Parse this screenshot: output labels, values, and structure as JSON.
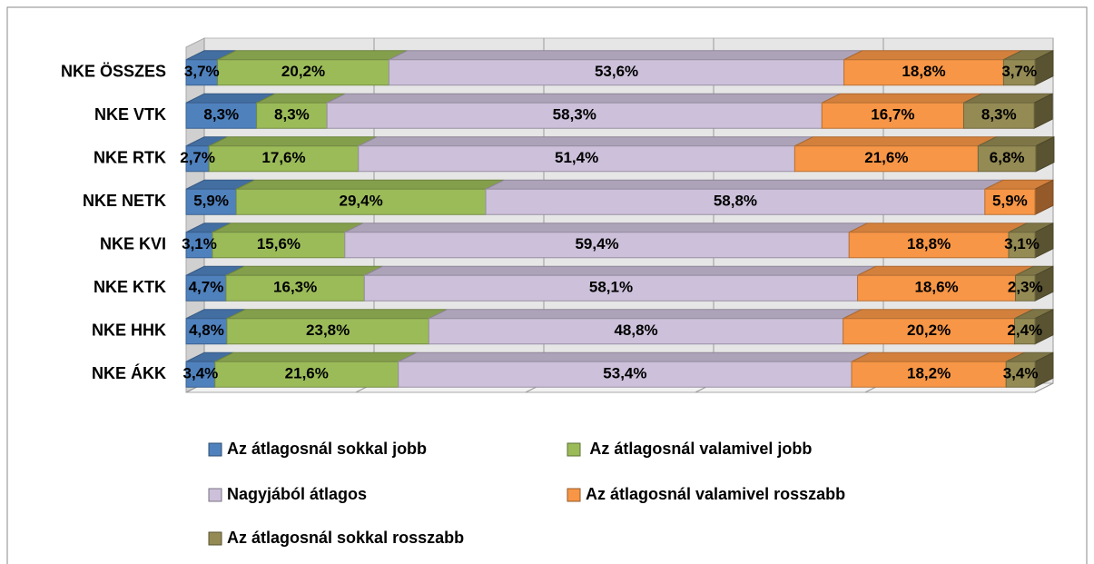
{
  "chart_data": {
    "type": "stacked_bar_100_horizontal",
    "categories": [
      "NKE ÖSSZES",
      "NKE VTK",
      "NKE RTK",
      "NKE NETK",
      "NKE KVI",
      "NKE KTK",
      "NKE HHK",
      "NKE ÁKK"
    ],
    "xlim": [
      0,
      100
    ],
    "xticks": [
      0,
      20,
      40,
      60,
      80,
      100
    ],
    "grid": true,
    "legend": "bottom",
    "series": [
      {
        "name": "Az átlagosnál sokkal jobb",
        "color": "#4f81bd",
        "values": [
          3.7,
          8.3,
          2.7,
          5.9,
          3.1,
          4.7,
          4.8,
          3.4
        ],
        "value_labels": [
          "3,7%",
          "8,3%",
          "2,7%",
          "5,9%",
          "3,1%",
          "4,7%",
          "4,8%",
          "3,4%"
        ]
      },
      {
        "name": " Az átlagosnál valamivel jobb",
        "color": "#9bbb59",
        "values": [
          20.2,
          8.3,
          17.6,
          29.4,
          15.6,
          16.3,
          23.8,
          21.6
        ],
        "value_labels": [
          "20,2%",
          "8,3%",
          "17,6%",
          "29,4%",
          "15,6%",
          "16,3%",
          "23,8%",
          "21,6%"
        ]
      },
      {
        "name": "Nagyjából átlagos",
        "color": "#ccc0da",
        "values": [
          53.6,
          58.3,
          51.4,
          58.8,
          59.4,
          58.1,
          48.8,
          53.4
        ],
        "value_labels": [
          "53,6%",
          "58,3%",
          "51,4%",
          "58,8%",
          "59,4%",
          "58,1%",
          "48,8%",
          "53,4%"
        ]
      },
      {
        "name": "Az átlagosnál valamivel rosszabb",
        "color": "#f79646",
        "values": [
          18.8,
          16.7,
          21.6,
          5.9,
          18.8,
          18.6,
          20.2,
          18.2
        ],
        "value_labels": [
          "18,8%",
          "16,7%",
          "21,6%",
          "5,9%",
          "18,8%",
          "18,6%",
          "20,2%",
          "18,2%"
        ]
      },
      {
        "name": "Az átlagosnál sokkal rosszabb",
        "color": "#948a54",
        "values": [
          3.7,
          8.3,
          6.8,
          null,
          3.1,
          2.3,
          2.4,
          3.4
        ],
        "value_labels": [
          "3,7%",
          "8,3%",
          "6,8%",
          null,
          "3,1%",
          "2,3%",
          "2,4%",
          "3,4%"
        ]
      }
    ]
  }
}
